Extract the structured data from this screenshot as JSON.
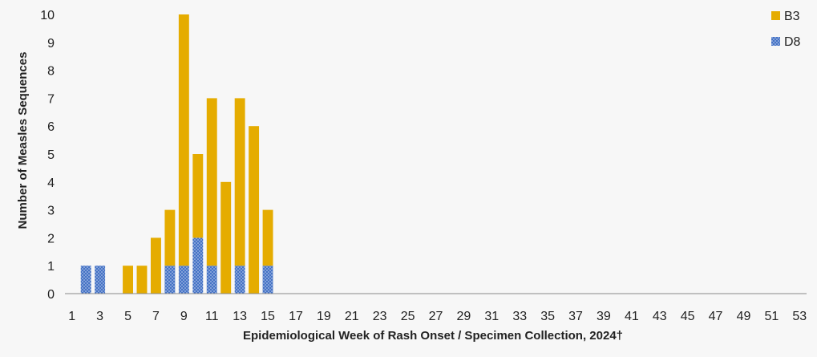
{
  "chart_data": {
    "type": "bar",
    "stacked": true,
    "xlabel": "Epidemiological Week of Rash Onset / Specimen Collection, 2024†",
    "ylabel": "Number of Measles Sequences",
    "ylim": [
      0,
      10
    ],
    "yticks": [
      0,
      1,
      2,
      3,
      4,
      5,
      6,
      7,
      8,
      9,
      10
    ],
    "x": [
      1,
      2,
      3,
      4,
      5,
      6,
      7,
      8,
      9,
      10,
      11,
      12,
      13,
      14,
      15,
      16,
      17,
      18,
      19,
      20,
      21,
      22,
      23,
      24,
      25,
      26,
      27,
      28,
      29,
      30,
      31,
      32,
      33,
      34,
      35,
      36,
      37,
      38,
      39,
      40,
      41,
      42,
      43,
      44,
      45,
      46,
      47,
      48,
      49,
      50,
      51,
      52,
      53
    ],
    "xtick_labels": [
      1,
      3,
      5,
      7,
      9,
      11,
      13,
      15,
      17,
      19,
      21,
      23,
      25,
      27,
      29,
      31,
      33,
      35,
      37,
      39,
      41,
      43,
      45,
      47,
      49,
      51,
      53
    ],
    "series": [
      {
        "name": "D8",
        "color": "#4472c4",
        "pattern": "dotted",
        "values": [
          0,
          1,
          1,
          0,
          0,
          0,
          0,
          1,
          1,
          2,
          1,
          0,
          1,
          0,
          1,
          0,
          0,
          0,
          0,
          0,
          0,
          0,
          0,
          0,
          0,
          0,
          0,
          0,
          0,
          0,
          0,
          0,
          0,
          0,
          0,
          0,
          0,
          0,
          0,
          0,
          0,
          0,
          0,
          0,
          0,
          0,
          0,
          0,
          0,
          0,
          0,
          0,
          0
        ]
      },
      {
        "name": "B3",
        "color": "#e5ac00",
        "pattern": "solid",
        "values": [
          0,
          0,
          0,
          0,
          1,
          1,
          2,
          2,
          9,
          3,
          6,
          4,
          6,
          6,
          2,
          0,
          0,
          0,
          0,
          0,
          0,
          0,
          0,
          0,
          0,
          0,
          0,
          0,
          0,
          0,
          0,
          0,
          0,
          0,
          0,
          0,
          0,
          0,
          0,
          0,
          0,
          0,
          0,
          0,
          0,
          0,
          0,
          0,
          0,
          0,
          0,
          0,
          0
        ]
      }
    ],
    "legend": {
      "position": "top-right",
      "order": [
        "B3",
        "D8"
      ]
    },
    "grid": false
  }
}
